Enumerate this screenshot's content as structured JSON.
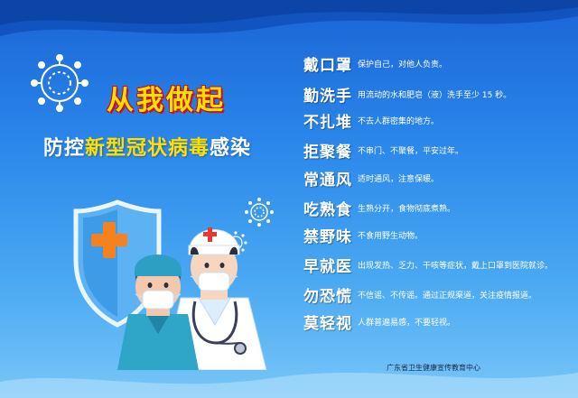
{
  "title": "从我做起",
  "subtitle": {
    "part1": "防控",
    "highlight": "新型冠状病毒",
    "part2": "感染"
  },
  "items": [
    {
      "keyword": "戴口罩",
      "desc": "保护自己，对他人负责。"
    },
    {
      "keyword": "勤洗手",
      "desc": "用流动的水和肥皂（液）洗手至少 15 秒。"
    },
    {
      "keyword": "不扎堆",
      "desc": "不去人群密集的地方。"
    },
    {
      "keyword": "拒聚餐",
      "desc": "不串门、不聚餐，平安过年。"
    },
    {
      "keyword": "常通风",
      "desc": "适时通风，注意保暖。"
    },
    {
      "keyword": "吃熟食",
      "desc": "生熟分开，食物彻底煮熟。"
    },
    {
      "keyword": "禁野味",
      "desc": "不食用野生动物。"
    },
    {
      "keyword": "早就医",
      "desc": "出现发热、乏力、干咳等症状，戴上口罩到医院就诊。"
    },
    {
      "keyword": "勿恐慌",
      "desc": "不信谣、不传谣。通过正规渠道，关注疫情报道。"
    },
    {
      "keyword": "莫轻视",
      "desc": "人群普遍易感，不要轻视。"
    }
  ],
  "footer": "广东省卫生健康宣传教育中心",
  "colors": {
    "background_top": "#1a64d6",
    "background_bottom": "#78c6f7",
    "title_yellow": "#ffe000",
    "title_outline": "#c8101a",
    "text_white": "#ffffff"
  },
  "icons": [
    "virus-icon",
    "shield-icon",
    "medical-cross-icon",
    "nurse-illustration",
    "doctor-illustration",
    "stethoscope-icon"
  ]
}
